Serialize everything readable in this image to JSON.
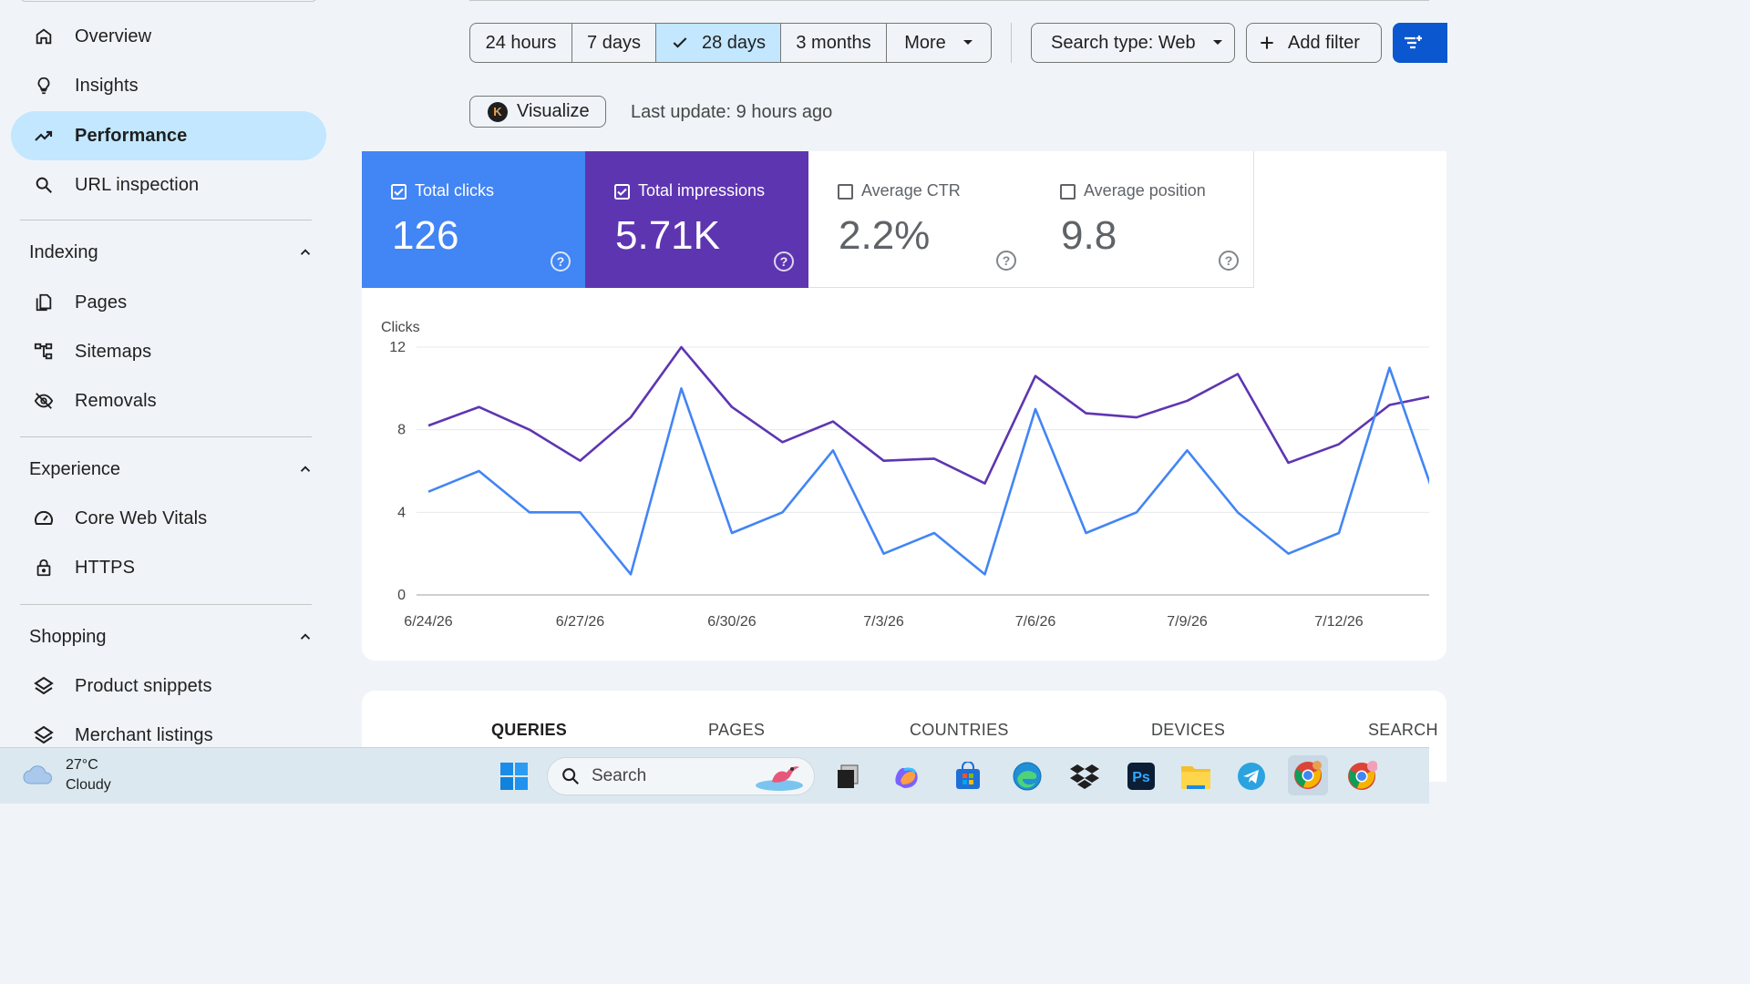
{
  "sidebar": {
    "nav_top": [
      {
        "label": "Overview",
        "icon": "home-icon"
      },
      {
        "label": "Insights",
        "icon": "lightbulb-icon"
      },
      {
        "label": "Performance",
        "icon": "trending-up-icon",
        "active": true
      },
      {
        "label": "URL inspection",
        "icon": "search-icon"
      }
    ],
    "sections": [
      {
        "title": "Indexing",
        "items": [
          {
            "label": "Pages",
            "icon": "pages-icon"
          },
          {
            "label": "Sitemaps",
            "icon": "sitemap-icon"
          },
          {
            "label": "Removals",
            "icon": "eye-off-icon"
          }
        ]
      },
      {
        "title": "Experience",
        "items": [
          {
            "label": "Core Web Vitals",
            "icon": "gauge-icon"
          },
          {
            "label": "HTTPS",
            "icon": "lock-icon"
          }
        ]
      },
      {
        "title": "Shopping",
        "items": [
          {
            "label": "Product snippets",
            "icon": "layers-icon"
          },
          {
            "label": "Merchant listings",
            "icon": "layers-icon"
          }
        ]
      }
    ]
  },
  "toolbar": {
    "ranges": [
      "24 hours",
      "7 days",
      "28 days",
      "3 months",
      "More"
    ],
    "selected_range": "28 days",
    "search_type": "Search type: Web",
    "add_filter": "Add filter",
    "visualize": "Visualize",
    "visualize_badge": "K",
    "last_update": "Last update: 9 hours ago"
  },
  "metrics": [
    {
      "label": "Total clicks",
      "value": "126",
      "checked": true,
      "color": "#4285f4"
    },
    {
      "label": "Total impressions",
      "value": "5.71K",
      "checked": true,
      "color": "#5e35b1"
    },
    {
      "label": "Average CTR",
      "value": "2.2%",
      "checked": false
    },
    {
      "label": "Average position",
      "value": "9.8",
      "checked": false
    }
  ],
  "chart_data": {
    "type": "line",
    "ylabel": "Clicks",
    "ylim": [
      0,
      12
    ],
    "yticks": [
      0,
      4,
      8,
      12
    ],
    "xticks": [
      "6/24/26",
      "6/27/26",
      "6/30/26",
      "7/3/26",
      "7/6/26",
      "7/9/26",
      "7/12/26"
    ],
    "x": [
      "6/24/26",
      "6/25/26",
      "6/26/26",
      "6/27/26",
      "6/28/26",
      "6/29/26",
      "6/30/26",
      "7/1/26",
      "7/2/26",
      "7/3/26",
      "7/4/26",
      "7/5/26",
      "7/6/26",
      "7/7/26",
      "7/8/26",
      "7/9/26",
      "7/10/26",
      "7/11/26",
      "7/12/26",
      "7/13/26",
      "7/14/26"
    ],
    "series": [
      {
        "color": "#4285f4",
        "values": [
          5,
          6,
          4,
          4,
          1,
          10,
          3,
          4,
          7,
          2,
          3,
          1,
          9,
          3,
          4,
          7,
          4,
          2,
          3,
          11,
          4
        ]
      },
      {
        "color": "#5e35b1",
        "values": [
          8.2,
          9.1,
          8.0,
          6.5,
          8.6,
          12.0,
          9.1,
          7.4,
          8.4,
          6.5,
          6.6,
          5.4,
          10.6,
          8.8,
          8.6,
          9.4,
          10.7,
          6.4,
          7.3,
          9.2,
          9.7
        ]
      }
    ],
    "grid": true
  },
  "bottom_tabs": [
    "QUERIES",
    "PAGES",
    "COUNTRIES",
    "DEVICES",
    "SEARCH"
  ],
  "taskbar": {
    "temp": "27°C",
    "condition": "Cloudy",
    "search_placeholder": "Search",
    "apps": [
      "windows-start-icon",
      "task-view-icon",
      "copilot-icon",
      "store-icon",
      "edge-icon",
      "dropbox-icon",
      "photoshop-icon",
      "file-explorer-icon",
      "telegram-icon",
      "chrome-icon",
      "chrome-profile-icon"
    ],
    "photoshop_label": "Ps"
  }
}
